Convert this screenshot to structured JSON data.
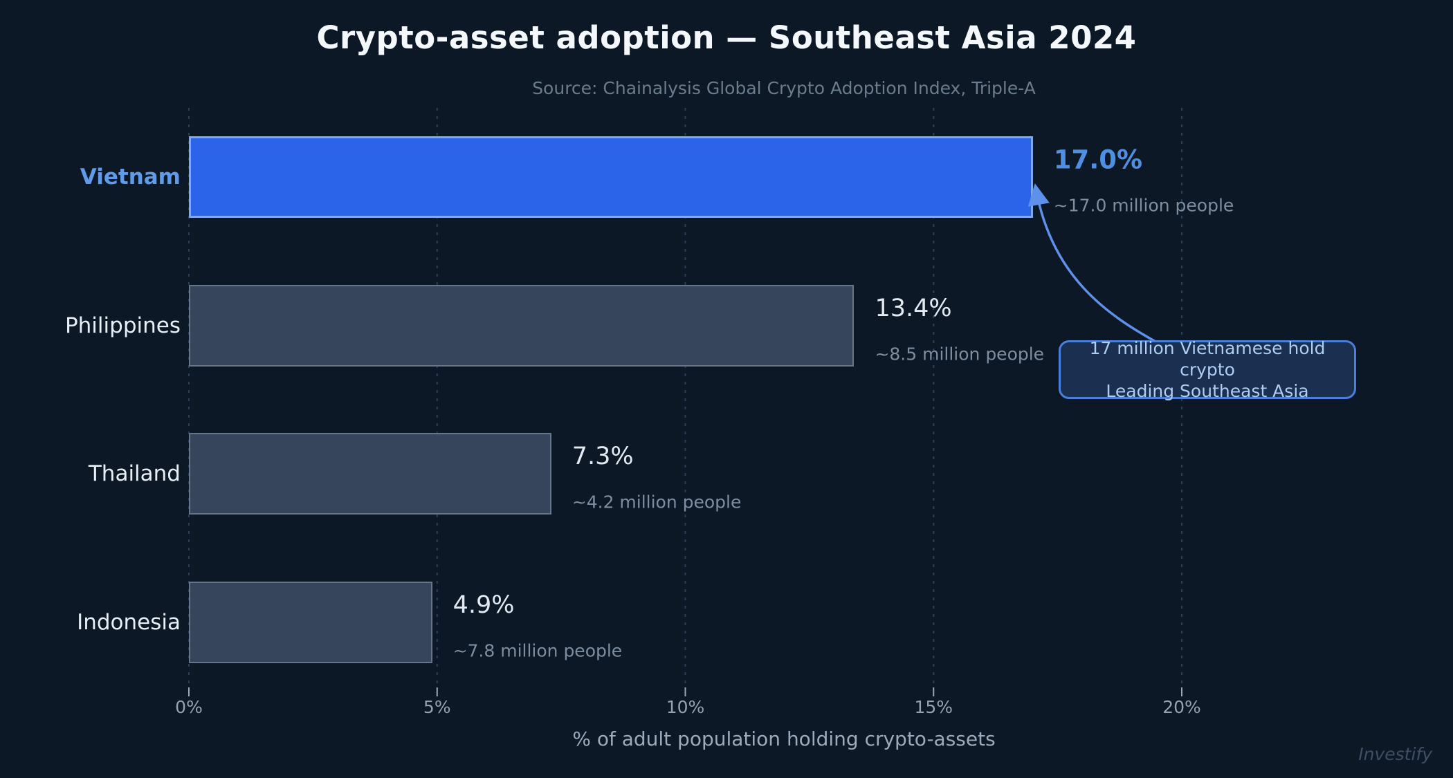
{
  "title": "Crypto-asset adoption — Southeast Asia 2024",
  "subtitle": "Source: Chainalysis Global Crypto Adoption Index, Triple-A",
  "watermark": "Investify",
  "colors": {
    "background": "#0d1826",
    "highlight_bar": "#2b64e8",
    "highlight_bar_border": "#7ea9ee",
    "bar": "#37455c",
    "bar_border": "#667588",
    "highlight_text": "#4f8fe2",
    "annotation_border": "#4a80d9",
    "annotation_fill": "#1b2f50",
    "annotation_text": "#aecdf3",
    "arrow": "#5e92ea"
  },
  "chart_data": {
    "type": "bar",
    "orientation": "horizontal",
    "title": "Crypto-asset adoption — Southeast Asia 2024",
    "subtitle": "Source: Chainalysis Global Crypto Adoption Index, Triple-A",
    "xlabel": "% of adult population holding crypto-assets",
    "categories": [
      "Vietnam",
      "Philippines",
      "Thailand",
      "Indonesia"
    ],
    "values": [
      17.0,
      13.4,
      7.3,
      4.9
    ],
    "value_labels": [
      "17.0%",
      "13.4%",
      "7.3%",
      "4.9%"
    ],
    "people_labels": [
      "~17.0 million people",
      "~8.5 million people",
      "~4.2 million people",
      "~7.8 million people"
    ],
    "highlight_index": 0,
    "x_ticks": [
      0,
      5,
      10,
      15,
      20
    ],
    "x_tick_labels": [
      "0%",
      "5%",
      "10%",
      "15%",
      "20%"
    ],
    "xlim": [
      0,
      24
    ],
    "grid": "dashed-vertical",
    "legend": "none",
    "annotation": {
      "lines": [
        "17 million Vietnamese hold crypto",
        "Leading Southeast Asia"
      ],
      "target_category": "Vietnam"
    }
  }
}
